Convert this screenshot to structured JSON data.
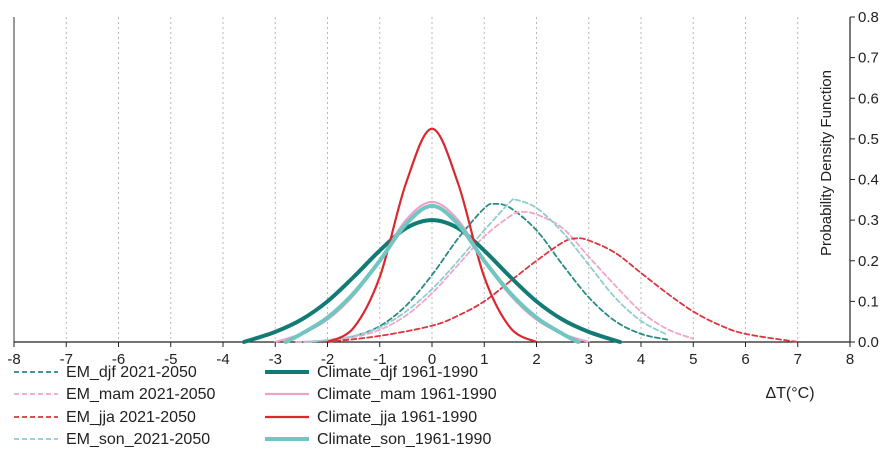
{
  "chart_data": {
    "type": "line",
    "title": "",
    "xlabel": "",
    "ylabel": "Probability Density Function",
    "unit_label": "ΔT(°C)",
    "xlim": [
      -8,
      8
    ],
    "ylim": [
      0,
      0.8
    ],
    "x_ticks": [
      -8,
      -7,
      -6,
      -5,
      -4,
      -3,
      -2,
      -1,
      0,
      1,
      2,
      3,
      4,
      5,
      6,
      7,
      8
    ],
    "y_ticks": [
      0.0,
      0.1,
      0.2,
      0.3,
      0.4,
      0.5,
      0.6,
      0.7,
      0.8
    ],
    "y_tick_labels": [
      "0.0",
      "0.1",
      "0.2",
      "0.3",
      "0.4",
      "0.5",
      "0.6",
      "0.7",
      "0.8"
    ],
    "grid": {
      "vertical": true,
      "horizontal": false,
      "style": "dotted"
    },
    "y_axis_side": "right",
    "legend_placement": "bottom-left",
    "series": [
      {
        "name": "EM_djf 2021-2050",
        "color": "#2a8a82",
        "dash": "dashed",
        "weight": "thin",
        "x": [
          -2.0,
          -1.5,
          -1.0,
          -0.5,
          0.0,
          0.5,
          1.0,
          1.2,
          1.5,
          2.0,
          2.5,
          3.0,
          3.5,
          4.0,
          4.5
        ],
        "y": [
          0.0,
          0.014,
          0.039,
          0.089,
          0.165,
          0.255,
          0.329,
          0.34,
          0.33,
          0.275,
          0.19,
          0.11,
          0.052,
          0.02,
          0.006
        ]
      },
      {
        "name": "EM_mam 2021-2050",
        "color": "#f0a6c8",
        "dash": "dashed",
        "weight": "thin",
        "x": [
          -2.6,
          -2.0,
          -1.5,
          -1.0,
          -0.5,
          0.0,
          0.5,
          1.0,
          1.5,
          1.7,
          2.0,
          2.5,
          3.0,
          3.5,
          4.0,
          4.5,
          5.0
        ],
        "y": [
          0.0,
          0.004,
          0.012,
          0.03,
          0.065,
          0.12,
          0.19,
          0.26,
          0.31,
          0.32,
          0.314,
          0.28,
          0.21,
          0.14,
          0.075,
          0.032,
          0.008
        ]
      },
      {
        "name": "EM_jja 2021-2050",
        "color": "#d9363e",
        "dash": "dashed",
        "weight": "thin",
        "x": [
          -2.0,
          -1.0,
          0.0,
          0.5,
          1.0,
          1.5,
          2.0,
          2.5,
          2.75,
          3.0,
          3.5,
          4.0,
          4.5,
          5.0,
          5.5,
          6.0,
          7.0
        ],
        "y": [
          0.0,
          0.015,
          0.04,
          0.065,
          0.1,
          0.15,
          0.2,
          0.245,
          0.255,
          0.25,
          0.22,
          0.17,
          0.12,
          0.075,
          0.042,
          0.02,
          0.0
        ]
      },
      {
        "name": "EM_son_2021-2050",
        "color": "#8fcdd0",
        "dash": "dashed",
        "weight": "thin",
        "x": [
          -2.4,
          -2.0,
          -1.5,
          -1.0,
          -0.5,
          0.0,
          0.5,
          1.0,
          1.5,
          1.6,
          2.0,
          2.5,
          3.0,
          3.5,
          4.0,
          4.5
        ],
        "y": [
          0.0,
          0.005,
          0.015,
          0.036,
          0.075,
          0.13,
          0.2,
          0.275,
          0.345,
          0.35,
          0.33,
          0.27,
          0.19,
          0.11,
          0.052,
          0.018
        ]
      },
      {
        "name": "Climate_djf 1961-1990",
        "color": "#137b76",
        "dash": "solid",
        "weight": "thick",
        "x": [
          -3.6,
          -3.0,
          -2.5,
          -2.0,
          -1.5,
          -1.0,
          -0.5,
          0.0,
          0.5,
          1.0,
          1.5,
          2.0,
          2.5,
          3.0,
          3.6
        ],
        "y": [
          0.0,
          0.025,
          0.055,
          0.1,
          0.16,
          0.225,
          0.28,
          0.3,
          0.28,
          0.225,
          0.16,
          0.1,
          0.055,
          0.025,
          0.0
        ]
      },
      {
        "name": "Climate_mam 1961-1990",
        "color": "#eba3c6",
        "dash": "solid",
        "weight": "medium",
        "x": [
          -3.0,
          -2.5,
          -2.0,
          -1.5,
          -1.0,
          -0.5,
          0.0,
          0.5,
          1.0,
          1.5,
          2.0,
          2.5,
          3.0
        ],
        "y": [
          0.0,
          0.02,
          0.055,
          0.115,
          0.2,
          0.3,
          0.345,
          0.3,
          0.2,
          0.115,
          0.055,
          0.02,
          0.0
        ]
      },
      {
        "name": "Climate_jja 1961-1990",
        "color": "#d9282f",
        "dash": "solid",
        "weight": "medium",
        "x": [
          -2.0,
          -1.5,
          -1.0,
          -0.5,
          0.0,
          0.5,
          1.0,
          1.5,
          2.0
        ],
        "y": [
          0.0,
          0.035,
          0.16,
          0.39,
          0.525,
          0.39,
          0.16,
          0.035,
          0.0
        ]
      },
      {
        "name": "Climate_son_1961-1990",
        "color": "#72c6c2",
        "dash": "solid",
        "weight": "thick",
        "x": [
          -2.8,
          -2.5,
          -2.0,
          -1.5,
          -1.0,
          -0.5,
          0.0,
          0.5,
          1.0,
          1.5,
          2.0,
          2.5,
          2.8
        ],
        "y": [
          0.0,
          0.02,
          0.06,
          0.12,
          0.2,
          0.29,
          0.335,
          0.29,
          0.2,
          0.12,
          0.06,
          0.02,
          0.0
        ]
      }
    ]
  }
}
